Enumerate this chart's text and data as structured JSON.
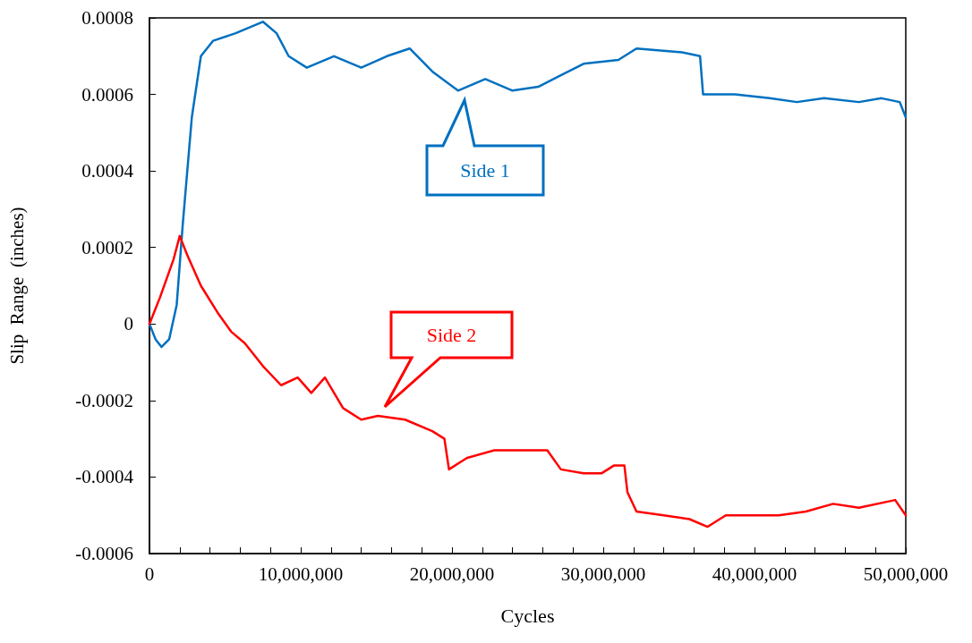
{
  "chart_data": {
    "type": "line",
    "xlabel": "Cycles",
    "ylabel": "Slip  Range  (inches)",
    "xlim": [
      0,
      50000000
    ],
    "ylim": [
      -0.0006,
      0.0008
    ],
    "xticks": [
      {
        "value": 0,
        "label": "0"
      },
      {
        "value": 2000000,
        "label": null
      },
      {
        "value": 4000000,
        "label": null
      },
      {
        "value": 6000000,
        "label": null
      },
      {
        "value": 8000000,
        "label": null
      },
      {
        "value": 10000000,
        "label": "10,000,000"
      },
      {
        "value": 12000000,
        "label": null
      },
      {
        "value": 14000000,
        "label": null
      },
      {
        "value": 16000000,
        "label": null
      },
      {
        "value": 18000000,
        "label": null
      },
      {
        "value": 20000000,
        "label": "20,000,000"
      },
      {
        "value": 22000000,
        "label": null
      },
      {
        "value": 24000000,
        "label": null
      },
      {
        "value": 26000000,
        "label": null
      },
      {
        "value": 28000000,
        "label": null
      },
      {
        "value": 30000000,
        "label": "30,000,000"
      },
      {
        "value": 32000000,
        "label": null
      },
      {
        "value": 34000000,
        "label": null
      },
      {
        "value": 36000000,
        "label": null
      },
      {
        "value": 38000000,
        "label": null
      },
      {
        "value": 40000000,
        "label": "40,000,000"
      },
      {
        "value": 42000000,
        "label": null
      },
      {
        "value": 44000000,
        "label": null
      },
      {
        "value": 46000000,
        "label": null
      },
      {
        "value": 48000000,
        "label": null
      },
      {
        "value": 50000000,
        "label": "50,000,000"
      }
    ],
    "yticks": [
      -0.0006,
      -0.0004,
      -0.0002,
      0,
      0.0002,
      0.0004,
      0.0006,
      0.0008
    ],
    "grid": false,
    "marker": "none",
    "line_style": "solid",
    "series": [
      {
        "color": "#0070c0",
        "x": [
          0,
          400000,
          800000,
          1300000,
          1800000,
          2200000,
          2800000,
          3400000,
          4200000,
          5700000,
          7500000,
          8400000,
          9200000,
          10400000,
          12200000,
          14000000,
          15700000,
          17200000,
          18700000,
          20400000,
          22200000,
          24000000,
          25700000,
          27200000,
          28700000,
          31000000,
          32200000,
          35200000,
          36400000,
          36600000,
          38700000,
          41000000,
          42800000,
          44600000,
          46900000,
          48400000,
          49600000,
          50000000
        ],
        "values": [
          0,
          -4e-05,
          -6e-05,
          -4e-05,
          5e-05,
          0.00026,
          0.00054,
          0.0007,
          0.00074,
          0.00076,
          0.00079,
          0.00076,
          0.0007,
          0.00067,
          0.0007,
          0.00067,
          0.0007,
          0.00072,
          0.00066,
          0.00061,
          0.00064,
          0.00061,
          0.00062,
          0.00065,
          0.00068,
          0.00069,
          0.00072,
          0.00071,
          0.0007,
          0.0006,
          0.0006,
          0.00059,
          0.00058,
          0.00059,
          0.00058,
          0.00059,
          0.00058,
          0.00054
        ]
      },
      {
        "color": "#ff0000",
        "x": [
          0,
          700000,
          1600000,
          2000000,
          2500000,
          3400000,
          4500000,
          5400000,
          6300000,
          7500000,
          8700000,
          9800000,
          10700000,
          11600000,
          12800000,
          14000000,
          15100000,
          16900000,
          18700000,
          19500000,
          19800000,
          21000000,
          22800000,
          24600000,
          26300000,
          27200000,
          28700000,
          29900000,
          30700000,
          31400000,
          31600000,
          32200000,
          34000000,
          35700000,
          36900000,
          38100000,
          39900000,
          41600000,
          43400000,
          45200000,
          46900000,
          49300000,
          50000000
        ],
        "values": [
          0,
          7e-05,
          0.00017,
          0.00023,
          0.00018,
          0.0001,
          3e-05,
          -2e-05,
          -5e-05,
          -0.00011,
          -0.00016,
          -0.00014,
          -0.00018,
          -0.00014,
          -0.00022,
          -0.00025,
          -0.00024,
          -0.00025,
          -0.00028,
          -0.0003,
          -0.00038,
          -0.00035,
          -0.00033,
          -0.00033,
          -0.00033,
          -0.00038,
          -0.00039,
          -0.00039,
          -0.00037,
          -0.00037,
          -0.00044,
          -0.00049,
          -0.0005,
          -0.00051,
          -0.00053,
          -0.0005,
          -0.0005,
          -0.0005,
          -0.00049,
          -0.00047,
          -0.00048,
          -0.00046,
          -0.0005
        ]
      }
    ],
    "annotations": [
      "Side 1",
      "Side 2"
    ]
  }
}
